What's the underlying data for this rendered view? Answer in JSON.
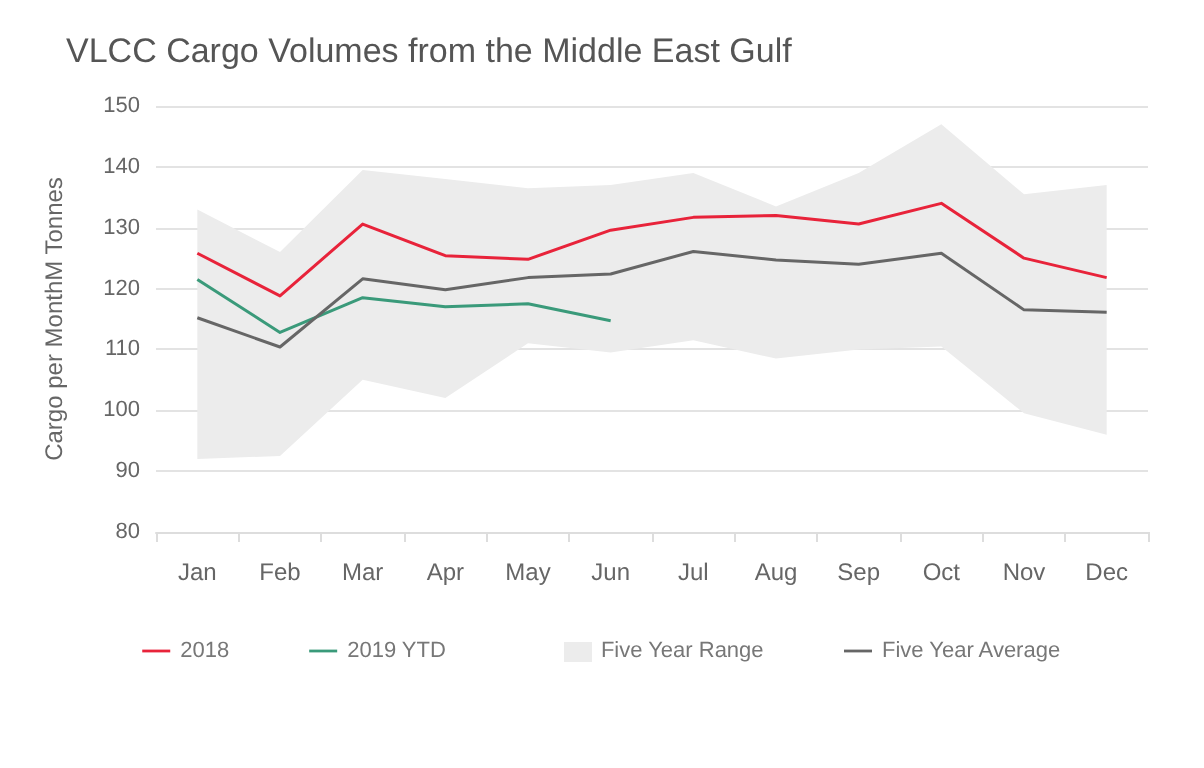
{
  "chart_data": {
    "type": "line",
    "title": "VLCC Cargo Volumes from the Middle East Gulf",
    "ylabel": "Cargo per MonthM Tonnes",
    "categories": [
      "Jan",
      "Feb",
      "Mar",
      "Apr",
      "May",
      "Jun",
      "Jul",
      "Aug",
      "Sep",
      "Oct",
      "Nov",
      "Dec"
    ],
    "series": [
      {
        "name": "2018",
        "color": "#e8233a",
        "values": [
          125.8,
          118.8,
          130.6,
          125.4,
          124.8,
          129.6,
          131.7,
          132,
          130.6,
          134,
          125,
          121.8
        ]
      },
      {
        "name": "2019 YTD",
        "color": "#3a9a7a",
        "values": [
          121.5,
          112.8,
          118.5,
          117,
          117.5,
          114.7,
          null,
          null,
          null,
          null,
          null,
          null
        ]
      },
      {
        "name": "Five Year Average",
        "color": "#666666",
        "values": [
          115.2,
          110.4,
          121.6,
          119.8,
          121.8,
          122.4,
          126.1,
          124.7,
          124,
          125.8,
          116.5,
          116.1
        ],
        "lower": [
          92,
          92.5,
          105,
          102,
          111,
          109.5,
          111.5,
          108.5,
          110,
          110.5,
          99.5,
          96
        ],
        "upper": [
          133,
          126,
          139.5,
          138,
          136.5,
          137,
          139,
          133.5,
          139,
          147,
          135.5,
          137
        ]
      }
    ],
    "annotations": [
      "Five Year Range"
    ],
    "ylim": [
      80,
      150
    ],
    "yticks": [
      80,
      90,
      100,
      110,
      120,
      130,
      140,
      150
    ],
    "grid": "y",
    "legend": "bottom",
    "marker": "none",
    "line_style": "solid"
  }
}
